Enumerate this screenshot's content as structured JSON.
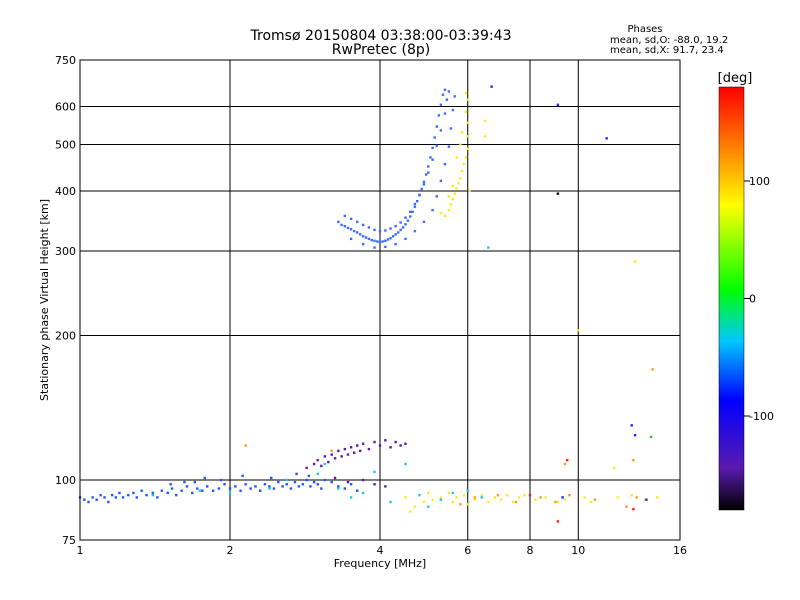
{
  "chart_data": {
    "type": "scatter",
    "title": "Tromsø 20150804 03:38:00-03:39:43",
    "subtitle": "RwPretec (8p)",
    "xlabel": "Frequency [MHz]",
    "ylabel": "Stationary phase Virtual Height [km]",
    "x_scale": "log2",
    "y_scale": "log",
    "xlim": [
      1,
      16
    ],
    "ylim": [
      75,
      750
    ],
    "x_ticks": [
      1,
      2,
      4,
      6,
      8,
      10,
      16
    ],
    "x_tick_labels": [
      "1",
      "2",
      "4",
      "6",
      "8",
      "10",
      "16"
    ],
    "y_ticks": [
      75,
      100,
      200,
      300,
      400,
      500,
      600,
      750
    ],
    "y_tick_labels": [
      "75",
      "100",
      "200",
      "300",
      "400",
      "500",
      "600",
      "750"
    ],
    "grid": true,
    "stats": {
      "heading": "Phases",
      "line_o": "mean, sd,O: -88.0, 19.2",
      "line_x": "mean, sd,X:  91.7, 23.4"
    },
    "colorbar": {
      "label": "[deg]",
      "range": [
        -180,
        180
      ],
      "ticks": [
        100,
        0,
        -100
      ],
      "tick_labels": [
        "100",
        "0",
        "-100"
      ],
      "colormap": "rainbow"
    },
    "colors": {
      "dark_blue": "#1a2cff",
      "blue": "#2255ff",
      "mid_blue": "#3a6cff",
      "cyan": "#22c8e0",
      "yellow": "#f0f020",
      "orange": "#ff9a1a",
      "red": "#ff2020",
      "purple": "#5a1ab0",
      "green": "#30c030",
      "black": "#000000"
    },
    "series": [
      {
        "color": "blue",
        "points": [
          [
            1.0,
            92
          ],
          [
            1.02,
            91
          ],
          [
            1.04,
            90
          ],
          [
            1.06,
            92
          ],
          [
            1.08,
            91
          ],
          [
            1.1,
            93
          ],
          [
            1.12,
            92
          ],
          [
            1.14,
            90
          ],
          [
            1.16,
            93
          ],
          [
            1.18,
            92
          ],
          [
            1.2,
            94
          ],
          [
            1.22,
            92
          ],
          [
            1.25,
            93
          ],
          [
            1.28,
            94
          ],
          [
            1.3,
            92
          ],
          [
            1.33,
            95
          ],
          [
            1.36,
            93
          ],
          [
            1.4,
            94
          ],
          [
            1.43,
            92
          ],
          [
            1.46,
            95
          ],
          [
            1.5,
            94
          ],
          [
            1.53,
            96
          ],
          [
            1.56,
            93
          ],
          [
            1.6,
            95
          ],
          [
            1.64,
            97
          ],
          [
            1.68,
            94
          ],
          [
            1.72,
            96
          ],
          [
            1.76,
            95
          ],
          [
            1.8,
            97
          ],
          [
            1.85,
            95
          ],
          [
            1.9,
            96
          ],
          [
            1.95,
            98
          ],
          [
            2.0,
            96
          ],
          [
            2.05,
            97
          ],
          [
            2.1,
            95
          ],
          [
            2.15,
            98
          ],
          [
            2.2,
            96
          ],
          [
            2.25,
            97
          ],
          [
            2.3,
            95
          ],
          [
            2.35,
            98
          ],
          [
            2.4,
            97
          ],
          [
            2.45,
            96
          ],
          [
            2.5,
            99
          ],
          [
            2.55,
            97
          ],
          [
            2.6,
            98
          ],
          [
            2.65,
            96
          ],
          [
            2.7,
            99
          ],
          [
            2.75,
            97
          ],
          [
            2.8,
            98
          ],
          [
            2.85,
            100
          ],
          [
            2.9,
            97
          ],
          [
            2.95,
            99
          ],
          [
            3.0,
            98
          ],
          [
            3.05,
            96
          ],
          [
            3.1,
            100
          ],
          [
            3.2,
            99
          ],
          [
            3.3,
            97
          ],
          [
            3.4,
            96
          ],
          [
            3.5,
            98
          ],
          [
            3.6,
            95
          ],
          [
            1.7,
            99
          ],
          [
            1.78,
            101
          ],
          [
            1.92,
            100
          ],
          [
            2.12,
            102
          ],
          [
            2.42,
            101
          ],
          [
            2.72,
            103
          ],
          [
            2.88,
            102
          ],
          [
            1.52,
            98
          ],
          [
            1.62,
            99
          ]
        ]
      },
      {
        "color": "purple",
        "points": [
          [
            2.85,
            106
          ],
          [
            2.95,
            108
          ],
          [
            3.0,
            110
          ],
          [
            3.05,
            107
          ],
          [
            3.1,
            112
          ],
          [
            3.15,
            109
          ],
          [
            3.2,
            113
          ],
          [
            3.25,
            111
          ],
          [
            3.3,
            115
          ],
          [
            3.35,
            112
          ],
          [
            3.4,
            116
          ],
          [
            3.45,
            113
          ],
          [
            3.5,
            117
          ],
          [
            3.55,
            114
          ],
          [
            3.6,
            118
          ],
          [
            3.65,
            115
          ],
          [
            3.7,
            119
          ],
          [
            3.8,
            116
          ],
          [
            3.9,
            120
          ],
          [
            4.0,
            118
          ],
          [
            4.1,
            121
          ],
          [
            4.2,
            117
          ],
          [
            4.3,
            120
          ],
          [
            4.4,
            118
          ],
          [
            4.5,
            119
          ],
          [
            3.7,
            100
          ],
          [
            3.9,
            98
          ],
          [
            4.1,
            97
          ],
          [
            3.25,
            101
          ],
          [
            3.45,
            99
          ]
        ]
      },
      {
        "color": "mid_blue",
        "points": [
          [
            3.3,
            345
          ],
          [
            3.35,
            340
          ],
          [
            3.4,
            338
          ],
          [
            3.45,
            335
          ],
          [
            3.5,
            333
          ],
          [
            3.55,
            330
          ],
          [
            3.6,
            328
          ],
          [
            3.65,
            325
          ],
          [
            3.7,
            322
          ],
          [
            3.75,
            320
          ],
          [
            3.8,
            318
          ],
          [
            3.85,
            316
          ],
          [
            3.9,
            315
          ],
          [
            3.95,
            314
          ],
          [
            4.0,
            313
          ],
          [
            4.05,
            314
          ],
          [
            4.1,
            315
          ],
          [
            4.15,
            317
          ],
          [
            4.2,
            319
          ],
          [
            4.25,
            322
          ],
          [
            4.3,
            325
          ],
          [
            4.35,
            328
          ],
          [
            4.4,
            332
          ],
          [
            4.45,
            336
          ],
          [
            4.5,
            341
          ],
          [
            4.55,
            347
          ],
          [
            4.6,
            354
          ],
          [
            4.65,
            362
          ],
          [
            4.7,
            371
          ],
          [
            4.75,
            381
          ],
          [
            4.8,
            392
          ],
          [
            4.85,
            404
          ],
          [
            4.9,
            418
          ],
          [
            4.95,
            433
          ],
          [
            5.0,
            450
          ],
          [
            5.05,
            470
          ],
          [
            5.1,
            492
          ],
          [
            5.15,
            517
          ],
          [
            5.2,
            545
          ],
          [
            5.25,
            575
          ],
          [
            5.3,
            605
          ],
          [
            5.35,
            635
          ],
          [
            5.4,
            650
          ],
          [
            3.4,
            355
          ],
          [
            3.5,
            350
          ],
          [
            3.6,
            345
          ],
          [
            3.7,
            340
          ],
          [
            3.8,
            336
          ],
          [
            3.9,
            332
          ],
          [
            4.0,
            330
          ],
          [
            4.1,
            331
          ],
          [
            4.2,
            334
          ],
          [
            4.3,
            338
          ],
          [
            4.4,
            344
          ],
          [
            4.5,
            352
          ],
          [
            4.6,
            362
          ],
          [
            4.7,
            376
          ],
          [
            4.8,
            393
          ],
          [
            4.9,
            413
          ],
          [
            5.0,
            437
          ],
          [
            5.1,
            465
          ],
          [
            5.2,
            497
          ],
          [
            5.3,
            535
          ],
          [
            5.4,
            580
          ],
          [
            5.45,
            620
          ],
          [
            5.5,
            645
          ],
          [
            3.5,
            318
          ],
          [
            3.7,
            310
          ],
          [
            3.9,
            305
          ],
          [
            4.1,
            306
          ],
          [
            4.3,
            310
          ],
          [
            4.5,
            318
          ],
          [
            4.7,
            330
          ],
          [
            4.9,
            345
          ],
          [
            5.1,
            365
          ],
          [
            5.2,
            390
          ],
          [
            5.3,
            420
          ],
          [
            5.4,
            455
          ],
          [
            5.5,
            495
          ],
          [
            5.55,
            540
          ],
          [
            5.6,
            590
          ],
          [
            5.65,
            630
          ]
        ]
      },
      {
        "color": "yellow",
        "points": [
          [
            5.3,
            360
          ],
          [
            5.4,
            355
          ],
          [
            5.5,
            365
          ],
          [
            5.55,
            375
          ],
          [
            5.6,
            385
          ],
          [
            5.65,
            395
          ],
          [
            5.7,
            405
          ],
          [
            5.75,
            415
          ],
          [
            5.8,
            425
          ],
          [
            5.85,
            440
          ],
          [
            5.9,
            455
          ],
          [
            5.95,
            470
          ],
          [
            6.0,
            490
          ],
          [
            6.0,
            520
          ],
          [
            6.0,
            555
          ],
          [
            5.95,
            585
          ],
          [
            6.0,
            620
          ],
          [
            5.8,
            500
          ],
          [
            5.85,
            530
          ],
          [
            5.7,
            470
          ],
          [
            6.05,
            400
          ],
          [
            5.5,
            390
          ],
          [
            5.6,
            410
          ],
          [
            5.95,
            640
          ],
          [
            6.5,
            560
          ],
          [
            6.5,
            520
          ],
          [
            4.5,
            92
          ],
          [
            4.6,
            86
          ],
          [
            4.7,
            88
          ],
          [
            4.9,
            90
          ],
          [
            5.0,
            94
          ],
          [
            5.1,
            91
          ],
          [
            5.3,
            92
          ],
          [
            5.5,
            94
          ],
          [
            5.6,
            90
          ],
          [
            5.7,
            92
          ],
          [
            5.9,
            93
          ],
          [
            6.0,
            89
          ],
          [
            6.2,
            91
          ],
          [
            6.4,
            93
          ],
          [
            6.6,
            90
          ],
          [
            6.8,
            92
          ],
          [
            7.0,
            91
          ],
          [
            7.2,
            93
          ],
          [
            7.4,
            90
          ],
          [
            7.6,
            92
          ],
          [
            7.8,
            93
          ],
          [
            8.2,
            91
          ],
          [
            8.6,
            92
          ],
          [
            9.1,
            90
          ],
          [
            9.4,
            91
          ],
          [
            10.3,
            92
          ],
          [
            10.6,
            90
          ],
          [
            12.0,
            92
          ],
          [
            12.8,
            93
          ],
          [
            13.6,
            91
          ],
          [
            14.4,
            92
          ],
          [
            11.8,
            106
          ],
          [
            13.0,
            285
          ],
          [
            10.0,
            205
          ]
        ]
      },
      {
        "color": "cyan",
        "points": [
          [
            1.4,
            93
          ],
          [
            1.74,
            95
          ],
          [
            2.0,
            94
          ],
          [
            2.6,
            100
          ],
          [
            3.0,
            103
          ],
          [
            3.3,
            96
          ],
          [
            3.5,
            92
          ],
          [
            3.7,
            94
          ],
          [
            4.2,
            90
          ],
          [
            4.8,
            93
          ],
          [
            5.3,
            91
          ],
          [
            5.6,
            94
          ],
          [
            6.0,
            95
          ],
          [
            6.6,
            305
          ],
          [
            4.5,
            108
          ],
          [
            3.1,
            108
          ],
          [
            3.9,
            104
          ],
          [
            2.4,
            96
          ],
          [
            5.0,
            88
          ],
          [
            6.4,
            92
          ]
        ]
      },
      {
        "color": "orange",
        "points": [
          [
            2.15,
            118
          ],
          [
            3.2,
            115
          ],
          [
            5.8,
            89
          ],
          [
            6.2,
            92
          ],
          [
            7.5,
            90
          ],
          [
            8.4,
            92
          ],
          [
            9.0,
            90
          ],
          [
            9.6,
            93
          ],
          [
            10.8,
            91
          ],
          [
            12.5,
            88
          ],
          [
            13.1,
            92
          ],
          [
            12.9,
            110
          ],
          [
            14.1,
            170
          ],
          [
            9.4,
            108
          ],
          [
            6.9,
            93
          ]
        ]
      },
      {
        "color": "red",
        "points": [
          [
            9.1,
            82
          ],
          [
            12.9,
            87
          ],
          [
            8.0,
            93
          ],
          [
            9.5,
            110
          ]
        ]
      },
      {
        "color": "dark_blue",
        "points": [
          [
            6.7,
            660
          ],
          [
            9.1,
            605
          ],
          [
            11.4,
            515
          ],
          [
            12.8,
            130
          ],
          [
            13.0,
            124
          ],
          [
            9.3,
            92
          ],
          [
            13.7,
            91
          ]
        ]
      },
      {
        "color": "black",
        "points": [
          [
            9.1,
            395
          ]
        ]
      },
      {
        "color": "green",
        "points": [
          [
            14.0,
            123
          ]
        ]
      }
    ]
  }
}
